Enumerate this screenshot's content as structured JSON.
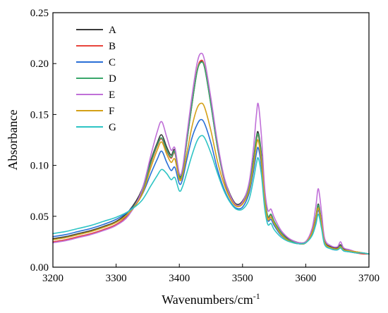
{
  "chart_data": {
    "type": "line",
    "xlabel": "Wavenumbers/cm",
    "xlabel_superscript": "-1",
    "ylabel": "Absorbance",
    "xlim": [
      3200,
      3700
    ],
    "ylim": [
      0.0,
      0.25
    ],
    "x_ticks": [
      3200,
      3300,
      3400,
      3500,
      3600,
      3700
    ],
    "y_ticks": [
      0.0,
      0.05,
      0.1,
      0.15,
      0.2,
      0.25
    ],
    "x_tick_labels": [
      "3200",
      "3300",
      "3400",
      "3500",
      "3600",
      "3700"
    ],
    "y_tick_labels": [
      "0.00",
      "0.05",
      "0.10",
      "0.15",
      "0.20",
      "0.25"
    ],
    "grid": false,
    "legend_position": "top-left",
    "x": [
      3200,
      3220,
      3240,
      3260,
      3280,
      3300,
      3320,
      3340,
      3355,
      3365,
      3372,
      3380,
      3387,
      3393,
      3400,
      3405,
      3412,
      3420,
      3428,
      3434,
      3440,
      3450,
      3460,
      3470,
      3480,
      3490,
      3500,
      3510,
      3517,
      3522,
      3525,
      3530,
      3535,
      3540,
      3545,
      3550,
      3560,
      3570,
      3580,
      3590,
      3600,
      3610,
      3616,
      3620,
      3625,
      3630,
      3640,
      3650,
      3655,
      3660,
      3670,
      3680,
      3690,
      3700
    ],
    "series": [
      {
        "name": "A",
        "color": "#3a3a3a",
        "values": [
          0.028,
          0.03,
          0.033,
          0.036,
          0.04,
          0.045,
          0.055,
          0.075,
          0.105,
          0.122,
          0.13,
          0.118,
          0.11,
          0.115,
          0.09,
          0.095,
          0.125,
          0.16,
          0.192,
          0.202,
          0.196,
          0.16,
          0.12,
          0.09,
          0.072,
          0.062,
          0.065,
          0.08,
          0.105,
          0.128,
          0.132,
          0.11,
          0.07,
          0.05,
          0.052,
          0.045,
          0.035,
          0.029,
          0.026,
          0.024,
          0.025,
          0.035,
          0.05,
          0.062,
          0.045,
          0.025,
          0.02,
          0.019,
          0.022,
          0.018,
          0.016,
          0.015,
          0.014,
          0.013
        ]
      },
      {
        "name": "B",
        "color": "#e8453c",
        "values": [
          0.025,
          0.027,
          0.03,
          0.033,
          0.037,
          0.042,
          0.052,
          0.072,
          0.102,
          0.119,
          0.126,
          0.114,
          0.107,
          0.112,
          0.088,
          0.093,
          0.124,
          0.16,
          0.193,
          0.203,
          0.197,
          0.16,
          0.119,
          0.088,
          0.069,
          0.06,
          0.063,
          0.077,
          0.102,
          0.125,
          0.129,
          0.107,
          0.068,
          0.049,
          0.051,
          0.044,
          0.034,
          0.028,
          0.025,
          0.023,
          0.024,
          0.034,
          0.049,
          0.06,
          0.044,
          0.024,
          0.019,
          0.018,
          0.021,
          0.017,
          0.015,
          0.014,
          0.013,
          0.013
        ]
      },
      {
        "name": "C",
        "color": "#2a6fd6",
        "values": [
          0.03,
          0.032,
          0.035,
          0.038,
          0.042,
          0.047,
          0.055,
          0.07,
          0.092,
          0.106,
          0.114,
          0.103,
          0.095,
          0.098,
          0.082,
          0.086,
          0.106,
          0.127,
          0.14,
          0.145,
          0.141,
          0.122,
          0.097,
          0.078,
          0.065,
          0.058,
          0.059,
          0.072,
          0.093,
          0.112,
          0.117,
          0.098,
          0.064,
          0.046,
          0.047,
          0.041,
          0.032,
          0.027,
          0.024,
          0.023,
          0.024,
          0.033,
          0.046,
          0.056,
          0.041,
          0.023,
          0.018,
          0.017,
          0.019,
          0.016,
          0.015,
          0.014,
          0.014,
          0.013
        ]
      },
      {
        "name": "D",
        "color": "#3aa66a",
        "values": [
          0.027,
          0.029,
          0.032,
          0.035,
          0.039,
          0.044,
          0.053,
          0.073,
          0.103,
          0.12,
          0.127,
          0.115,
          0.108,
          0.113,
          0.089,
          0.094,
          0.124,
          0.16,
          0.192,
          0.201,
          0.196,
          0.159,
          0.119,
          0.089,
          0.07,
          0.061,
          0.064,
          0.078,
          0.103,
          0.126,
          0.13,
          0.108,
          0.069,
          0.05,
          0.052,
          0.045,
          0.035,
          0.028,
          0.025,
          0.023,
          0.024,
          0.034,
          0.049,
          0.061,
          0.044,
          0.024,
          0.019,
          0.018,
          0.021,
          0.017,
          0.016,
          0.015,
          0.014,
          0.013
        ]
      },
      {
        "name": "E",
        "color": "#c070d8",
        "values": [
          0.024,
          0.026,
          0.029,
          0.032,
          0.036,
          0.041,
          0.051,
          0.074,
          0.11,
          0.133,
          0.143,
          0.128,
          0.115,
          0.117,
          0.092,
          0.097,
          0.13,
          0.168,
          0.2,
          0.21,
          0.203,
          0.166,
          0.124,
          0.091,
          0.071,
          0.061,
          0.064,
          0.082,
          0.115,
          0.15,
          0.16,
          0.128,
          0.078,
          0.056,
          0.057,
          0.049,
          0.037,
          0.03,
          0.026,
          0.024,
          0.025,
          0.038,
          0.06,
          0.077,
          0.054,
          0.028,
          0.021,
          0.02,
          0.025,
          0.019,
          0.017,
          0.015,
          0.014,
          0.013
        ]
      },
      {
        "name": "F",
        "color": "#d4a017",
        "values": [
          0.027,
          0.029,
          0.032,
          0.035,
          0.039,
          0.044,
          0.053,
          0.07,
          0.098,
          0.115,
          0.123,
          0.111,
          0.103,
          0.106,
          0.086,
          0.09,
          0.112,
          0.138,
          0.156,
          0.161,
          0.157,
          0.134,
          0.105,
          0.083,
          0.068,
          0.06,
          0.062,
          0.075,
          0.098,
          0.12,
          0.124,
          0.103,
          0.066,
          0.047,
          0.049,
          0.043,
          0.033,
          0.027,
          0.024,
          0.023,
          0.024,
          0.034,
          0.048,
          0.058,
          0.043,
          0.024,
          0.019,
          0.018,
          0.02,
          0.017,
          0.016,
          0.015,
          0.014,
          0.013
        ]
      },
      {
        "name": "G",
        "color": "#2ec4c4",
        "values": [
          0.033,
          0.035,
          0.038,
          0.041,
          0.045,
          0.049,
          0.055,
          0.065,
          0.08,
          0.09,
          0.096,
          0.092,
          0.086,
          0.088,
          0.075,
          0.079,
          0.093,
          0.11,
          0.124,
          0.129,
          0.127,
          0.112,
          0.093,
          0.076,
          0.064,
          0.057,
          0.057,
          0.066,
          0.085,
          0.102,
          0.107,
          0.09,
          0.058,
          0.042,
          0.043,
          0.037,
          0.03,
          0.026,
          0.024,
          0.023,
          0.024,
          0.031,
          0.042,
          0.052,
          0.038,
          0.022,
          0.018,
          0.017,
          0.019,
          0.016,
          0.015,
          0.014,
          0.014,
          0.013
        ]
      }
    ]
  }
}
